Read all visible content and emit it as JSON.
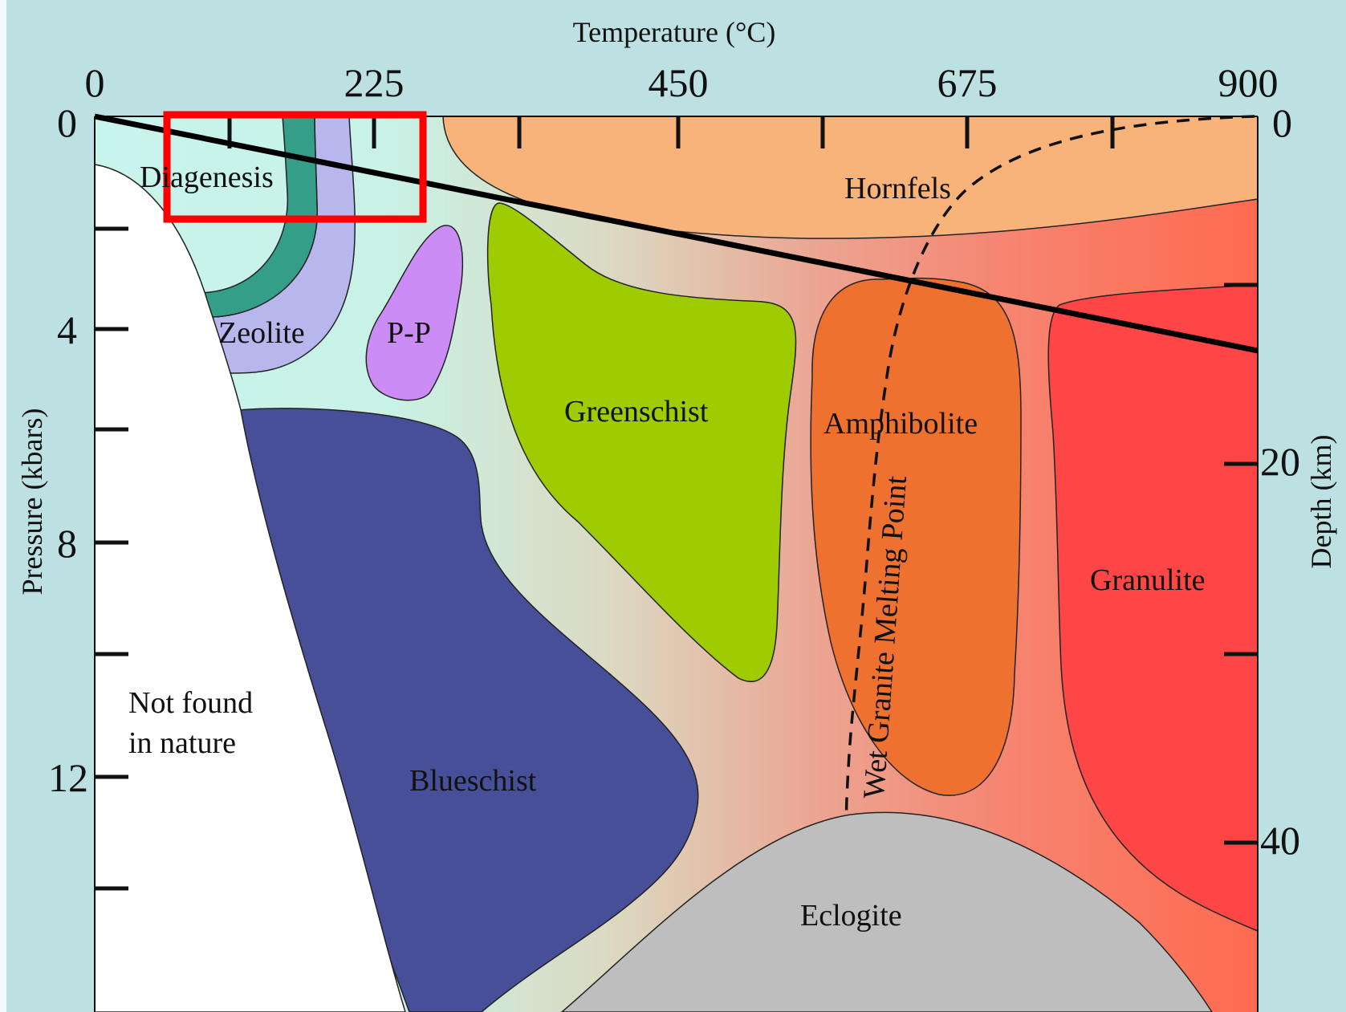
{
  "figure": {
    "x_axis": {
      "title": "Temperature (°C)",
      "tick_labels": [
        "0",
        "225",
        "450",
        "675",
        "900"
      ],
      "range": [
        0,
        900
      ]
    },
    "left_axis": {
      "title": "Pressure (kbars)",
      "tick_labels": [
        "0",
        "4",
        "8",
        "12"
      ]
    },
    "right_axis": {
      "title": "Depth (km)",
      "tick_labels": [
        "0",
        "20",
        "40"
      ]
    },
    "facies": {
      "diagenesis": "Diagenesis",
      "zeolite": "Zeolite",
      "pp": "P-P",
      "hornfels": "Hornfels",
      "greenschist": "Greenschist",
      "amphibolite": "Amphibolite",
      "granulite": "Granulite",
      "blueschist": "Blueschist",
      "eclogite": "Eclogite",
      "not_found_line1": "Not found",
      "not_found_line2": "in nature"
    },
    "curve_label": "Wet Granite Melting Point",
    "colors": {
      "background": "#bde0e2",
      "hornfels": "#f8b37a",
      "greenschist": "#9ecc00",
      "amphibolite": "#ef7130",
      "granulite": "#ff4646",
      "blueschist": "#464f98",
      "eclogite": "#bebebe",
      "zeolite": "#b7b7ee",
      "diagenesis_band": "#359e88",
      "pp": "#cc8cf5",
      "highlight_box": "#ff0000"
    }
  }
}
